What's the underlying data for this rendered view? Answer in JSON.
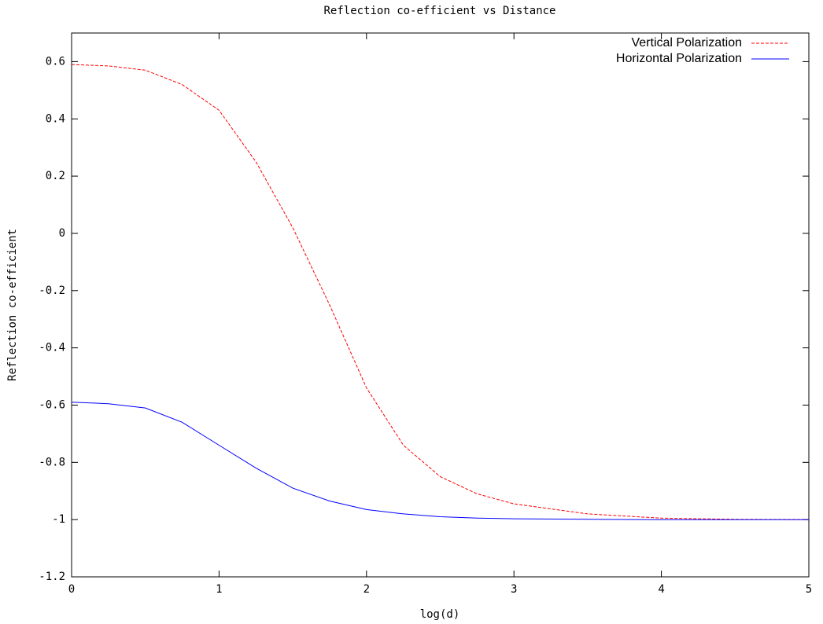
{
  "chart_data": {
    "type": "line",
    "title": "Reflection co-efficient vs Distance",
    "xlabel": "log(d)",
    "ylabel": "Reflection co-efficient",
    "x": [
      0,
      0.25,
      0.5,
      0.75,
      1,
      1.25,
      1.5,
      1.75,
      2,
      2.25,
      2.5,
      2.75,
      3,
      3.5,
      4,
      4.5,
      5
    ],
    "series": [
      {
        "name": "Vertical Polarization",
        "color": "#ff0000",
        "dash": true,
        "values": [
          0.59,
          0.585,
          0.57,
          0.52,
          0.43,
          0.25,
          0.02,
          -0.25,
          -0.54,
          -0.74,
          -0.85,
          -0.91,
          -0.945,
          -0.98,
          -0.995,
          -0.999,
          -1.0
        ]
      },
      {
        "name": "Horizontal Polarization",
        "color": "#0000ff",
        "dash": false,
        "values": [
          -0.59,
          -0.595,
          -0.61,
          -0.66,
          -0.74,
          -0.82,
          -0.89,
          -0.935,
          -0.965,
          -0.98,
          -0.99,
          -0.995,
          -0.997,
          -0.999,
          -1.0,
          -1.0,
          -1.0
        ]
      }
    ],
    "xlim": [
      0,
      5
    ],
    "xticks": [
      0,
      1,
      2,
      3,
      4,
      5
    ],
    "ylim": [
      -1.2,
      0.7
    ],
    "yticks": [
      0.6,
      0.4,
      0.2,
      0,
      -0.2,
      -0.4,
      -0.6,
      -0.8,
      -1,
      -1.2
    ],
    "legend": "upper right"
  }
}
